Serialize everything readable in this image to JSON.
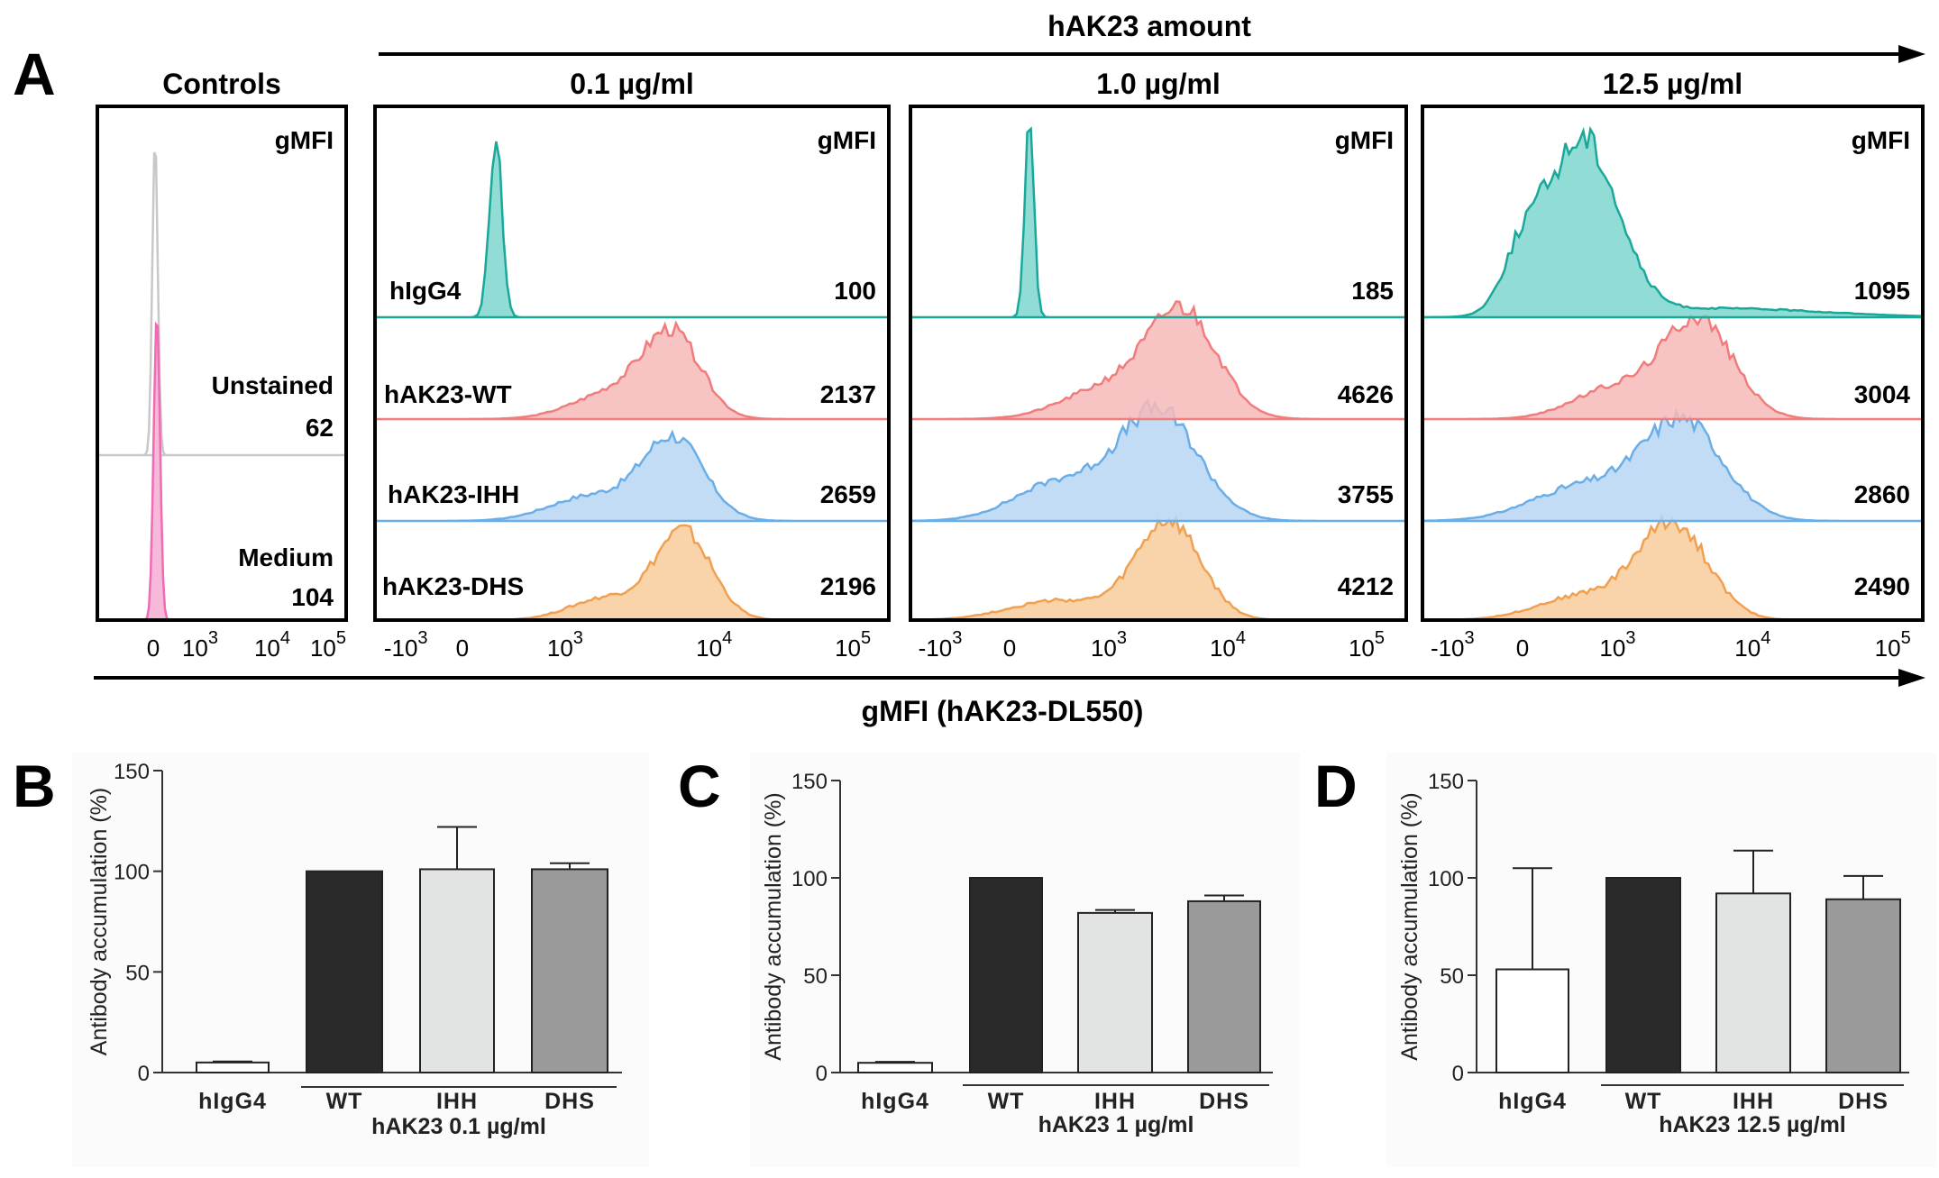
{
  "panel_a": {
    "letter": "A",
    "top_arrow_label": "hAK23 amount",
    "bottom_arrow_label": "gMFI (hAK23-DL550)",
    "gmfi_header": "gMFI",
    "controls": {
      "title": "Controls",
      "rows": [
        {
          "label": "Unstained",
          "value": "62",
          "color": "#c8c8c8"
        },
        {
          "label": "Medium",
          "value": "104",
          "color": "#f06bb4"
        }
      ],
      "ticks": [
        {
          "base": "0",
          "exp": ""
        },
        {
          "base": "10",
          "exp": "3"
        },
        {
          "base": "10",
          "exp": "4"
        },
        {
          "base": "10",
          "exp": "5"
        }
      ]
    },
    "row_labels": [
      "hIgG4",
      "hAK23-WT",
      "hAK23-IHH",
      "hAK23-DHS"
    ],
    "series_colors": {
      "hIgG4": {
        "line": "#1aa89a",
        "fill": "#7fd6cf"
      },
      "hAK23-WT": {
        "line": "#f07c7c",
        "fill": "#f7b8b8"
      },
      "hAK23-IHH": {
        "line": "#6aaee8",
        "fill": "#b7d6f4"
      },
      "hAK23-DHS": {
        "line": "#f0a050",
        "fill": "#f8cc9c"
      }
    },
    "concentrations": [
      {
        "title": "0.1 µg/ml",
        "values": [
          "100",
          "2137",
          "2659",
          "2196"
        ]
      },
      {
        "title": "1.0 µg/ml",
        "values": [
          "185",
          "4626",
          "3755",
          "4212"
        ]
      },
      {
        "title": "12.5 µg/ml",
        "values": [
          "1095",
          "3004",
          "2860",
          "2490"
        ]
      }
    ],
    "x_ticks": [
      {
        "base": "-10",
        "exp": "3"
      },
      {
        "base": "0",
        "exp": ""
      },
      {
        "base": "10",
        "exp": "3"
      },
      {
        "base": "10",
        "exp": "4"
      },
      {
        "base": "10",
        "exp": "5"
      }
    ]
  },
  "chart_data": [
    {
      "letter": "B",
      "type": "bar",
      "title": "",
      "categories": [
        "hIgG4",
        "WT",
        "IHH",
        "DHS"
      ],
      "values": [
        5,
        100,
        101,
        101
      ],
      "errors": [
        0.5,
        0,
        21,
        3
      ],
      "colors": [
        "#ffffff",
        "#2a2a2a",
        "#e2e4e3",
        "#9a9a9a"
      ],
      "ylabel": "Antibody accumulation (%)",
      "xlabel": "",
      "ylim": [
        0,
        150
      ],
      "yticks": [
        0,
        50,
        100,
        150
      ],
      "group_label": "hAK23 0.1 µg/ml"
    },
    {
      "letter": "C",
      "type": "bar",
      "title": "",
      "categories": [
        "hIgG4",
        "WT",
        "IHH",
        "DHS"
      ],
      "values": [
        5,
        100,
        82,
        88
      ],
      "errors": [
        0.5,
        0,
        1.5,
        3
      ],
      "colors": [
        "#ffffff",
        "#2a2a2a",
        "#e2e4e3",
        "#9a9a9a"
      ],
      "ylabel": "Antibody accumulation (%)",
      "xlabel": "",
      "ylim": [
        0,
        150
      ],
      "yticks": [
        0,
        50,
        100,
        150
      ],
      "group_label": "hAK23 1 µg/ml"
    },
    {
      "letter": "D",
      "type": "bar",
      "title": "",
      "categories": [
        "hIgG4",
        "WT",
        "IHH",
        "DHS"
      ],
      "values": [
        53,
        100,
        92,
        89
      ],
      "errors": [
        52,
        0,
        22,
        12
      ],
      "colors": [
        "#ffffff",
        "#2a2a2a",
        "#e2e4e3",
        "#9a9a9a"
      ],
      "ylabel": "Antibody accumulation (%)",
      "xlabel": "",
      "ylim": [
        0,
        150
      ],
      "yticks": [
        0,
        50,
        100,
        150
      ],
      "group_label": "hAK23 12.5 µg/ml"
    }
  ]
}
